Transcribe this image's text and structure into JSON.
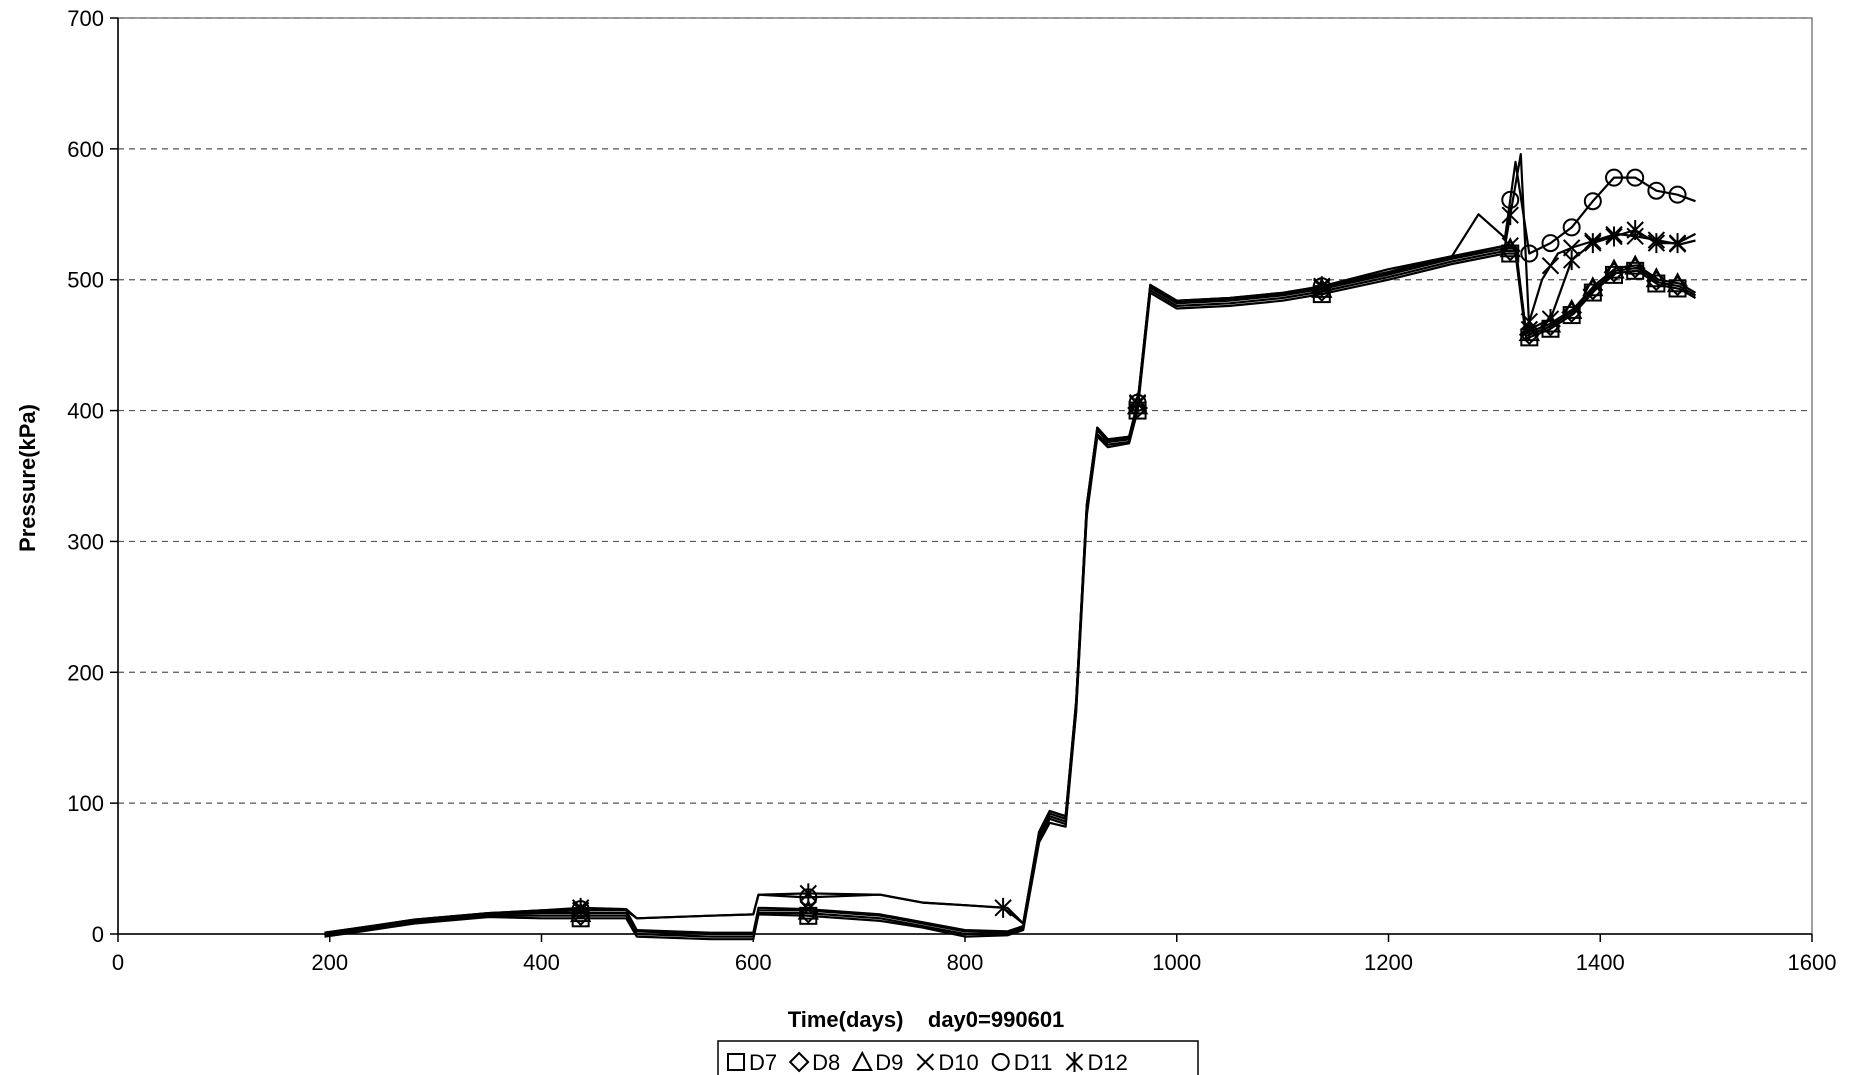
{
  "chart_data": {
    "type": "line",
    "title": "",
    "xlabel": "Time(days)    day0=990601",
    "ylabel": "Pressure(kPa)",
    "xlim": [
      0,
      1600
    ],
    "ylim": [
      0,
      700
    ],
    "x_ticks": [
      "0",
      "200",
      "400",
      "600",
      "800",
      "1000",
      "1200",
      "1400",
      "1600"
    ],
    "y_ticks": [
      "0",
      "100",
      "200",
      "300",
      "400",
      "500",
      "600",
      "700"
    ],
    "grid": "horizontal dashed",
    "legend_position": "bottom",
    "series": [
      {
        "name": "D7",
        "marker": "square",
        "points": [
          [
            195,
            -2
          ],
          [
            230,
            2
          ],
          [
            280,
            8
          ],
          [
            350,
            13
          ],
          [
            400,
            12
          ],
          [
            437,
            12
          ],
          [
            480,
            12
          ],
          [
            490,
            -2
          ],
          [
            560,
            -4
          ],
          [
            600,
            -4
          ],
          [
            605,
            15
          ],
          [
            650,
            14
          ],
          [
            720,
            10
          ],
          [
            760,
            5
          ],
          [
            800,
            -2
          ],
          [
            840,
            -1
          ],
          [
            855,
            3
          ],
          [
            870,
            70
          ],
          [
            880,
            85
          ],
          [
            895,
            82
          ],
          [
            905,
            170
          ],
          [
            915,
            320
          ],
          [
            925,
            380
          ],
          [
            935,
            372
          ],
          [
            955,
            375
          ],
          [
            963,
            400
          ],
          [
            975,
            490
          ],
          [
            1000,
            478
          ],
          [
            1050,
            480
          ],
          [
            1100,
            484
          ],
          [
            1137,
            489
          ],
          [
            1200,
            500
          ],
          [
            1260,
            512
          ],
          [
            1310,
            520
          ],
          [
            1320,
            520
          ],
          [
            1330,
            455
          ],
          [
            1352,
            462
          ],
          [
            1375,
            474
          ],
          [
            1395,
            492
          ],
          [
            1415,
            505
          ],
          [
            1435,
            507
          ],
          [
            1455,
            496
          ],
          [
            1475,
            493
          ],
          [
            1490,
            486
          ]
        ],
        "markers_x": [
          437,
          652,
          963,
          1137,
          1315,
          1333,
          1353,
          1373,
          1393,
          1413,
          1433,
          1453,
          1473
        ]
      },
      {
        "name": "D8",
        "marker": "diamond",
        "points": [
          [
            195,
            -1
          ],
          [
            230,
            3
          ],
          [
            280,
            9
          ],
          [
            350,
            14
          ],
          [
            400,
            14
          ],
          [
            437,
            14
          ],
          [
            480,
            14
          ],
          [
            490,
            0
          ],
          [
            560,
            -2
          ],
          [
            600,
            -2
          ],
          [
            605,
            16
          ],
          [
            650,
            16
          ],
          [
            720,
            12
          ],
          [
            760,
            6
          ],
          [
            800,
            0
          ],
          [
            840,
            0
          ],
          [
            855,
            4
          ],
          [
            870,
            72
          ],
          [
            880,
            88
          ],
          [
            895,
            84
          ],
          [
            905,
            172
          ],
          [
            915,
            322
          ],
          [
            925,
            382
          ],
          [
            935,
            374
          ],
          [
            955,
            376
          ],
          [
            963,
            402
          ],
          [
            975,
            492
          ],
          [
            1000,
            480
          ],
          [
            1050,
            482
          ],
          [
            1100,
            486
          ],
          [
            1137,
            491
          ],
          [
            1200,
            502
          ],
          [
            1260,
            514
          ],
          [
            1310,
            522
          ],
          [
            1320,
            522
          ],
          [
            1330,
            457
          ],
          [
            1352,
            464
          ],
          [
            1375,
            476
          ],
          [
            1395,
            494
          ],
          [
            1415,
            507
          ],
          [
            1435,
            509
          ],
          [
            1455,
            498
          ],
          [
            1475,
            495
          ],
          [
            1490,
            488
          ]
        ],
        "markers_x": [
          437,
          652,
          963,
          1137,
          1315,
          1333,
          1353,
          1373,
          1393,
          1413,
          1433,
          1453,
          1473
        ]
      },
      {
        "name": "D9",
        "marker": "triangle",
        "points": [
          [
            195,
            0
          ],
          [
            230,
            4
          ],
          [
            280,
            10
          ],
          [
            350,
            15
          ],
          [
            400,
            16
          ],
          [
            437,
            16
          ],
          [
            480,
            16
          ],
          [
            490,
            2
          ],
          [
            560,
            0
          ],
          [
            600,
            0
          ],
          [
            605,
            18
          ],
          [
            650,
            18
          ],
          [
            720,
            14
          ],
          [
            760,
            8
          ],
          [
            800,
            2
          ],
          [
            840,
            1
          ],
          [
            855,
            5
          ],
          [
            870,
            74
          ],
          [
            880,
            90
          ],
          [
            895,
            86
          ],
          [
            905,
            175
          ],
          [
            915,
            325
          ],
          [
            925,
            385
          ],
          [
            935,
            376
          ],
          [
            955,
            378
          ],
          [
            963,
            404
          ],
          [
            975,
            494
          ],
          [
            1000,
            482
          ],
          [
            1050,
            484
          ],
          [
            1100,
            488
          ],
          [
            1137,
            493
          ],
          [
            1200,
            504
          ],
          [
            1260,
            516
          ],
          [
            1310,
            524
          ],
          [
            1320,
            524
          ],
          [
            1330,
            459
          ],
          [
            1352,
            466
          ],
          [
            1375,
            478
          ],
          [
            1395,
            496
          ],
          [
            1415,
            509
          ],
          [
            1435,
            511
          ],
          [
            1455,
            500
          ],
          [
            1475,
            497
          ],
          [
            1490,
            490
          ]
        ],
        "markers_x": [
          437,
          652,
          963,
          1137,
          1315,
          1333,
          1353,
          1373,
          1393,
          1413,
          1433,
          1453,
          1473
        ]
      },
      {
        "name": "D10",
        "marker": "x",
        "points": [
          [
            195,
            0
          ],
          [
            230,
            4
          ],
          [
            280,
            10
          ],
          [
            350,
            16
          ],
          [
            400,
            17
          ],
          [
            437,
            18
          ],
          [
            480,
            18
          ],
          [
            490,
            3
          ],
          [
            560,
            1
          ],
          [
            600,
            1
          ],
          [
            605,
            20
          ],
          [
            650,
            19
          ],
          [
            720,
            15
          ],
          [
            760,
            9
          ],
          [
            800,
            3
          ],
          [
            840,
            2
          ],
          [
            855,
            6
          ],
          [
            870,
            76
          ],
          [
            880,
            92
          ],
          [
            895,
            88
          ],
          [
            905,
            177
          ],
          [
            915,
            327
          ],
          [
            925,
            386
          ],
          [
            935,
            377
          ],
          [
            955,
            379
          ],
          [
            963,
            405
          ],
          [
            975,
            495
          ],
          [
            1000,
            483
          ],
          [
            1050,
            485
          ],
          [
            1100,
            489
          ],
          [
            1137,
            494
          ],
          [
            1200,
            505
          ],
          [
            1260,
            517
          ],
          [
            1310,
            526
          ],
          [
            1320,
            526
          ],
          [
            1330,
            460
          ],
          [
            1345,
            500
          ],
          [
            1360,
            520
          ],
          [
            1375,
            525
          ],
          [
            1395,
            530
          ],
          [
            1415,
            535
          ],
          [
            1435,
            533
          ],
          [
            1455,
            530
          ],
          [
            1475,
            527
          ],
          [
            1490,
            530
          ]
        ],
        "markers_x": [
          437,
          652,
          963,
          1137,
          1315,
          1333,
          1353,
          1373,
          1393,
          1413,
          1433,
          1453,
          1473
        ]
      },
      {
        "name": "D11",
        "marker": "circle",
        "points": [
          [
            195,
            1
          ],
          [
            230,
            5
          ],
          [
            280,
            11
          ],
          [
            350,
            16
          ],
          [
            400,
            18
          ],
          [
            437,
            19
          ],
          [
            480,
            18
          ],
          [
            490,
            12
          ],
          [
            560,
            14
          ],
          [
            600,
            15
          ],
          [
            605,
            30
          ],
          [
            650,
            28
          ],
          [
            720,
            30
          ],
          [
            760,
            24
          ],
          [
            800,
            22
          ],
          [
            840,
            20
          ],
          [
            855,
            8
          ],
          [
            870,
            78
          ],
          [
            880,
            94
          ],
          [
            895,
            90
          ],
          [
            905,
            178
          ],
          [
            915,
            328
          ],
          [
            925,
            387
          ],
          [
            935,
            378
          ],
          [
            955,
            380
          ],
          [
            963,
            406
          ],
          [
            975,
            496
          ],
          [
            1000,
            484
          ],
          [
            1050,
            486
          ],
          [
            1100,
            490
          ],
          [
            1137,
            495
          ],
          [
            1200,
            508
          ],
          [
            1260,
            518
          ],
          [
            1285,
            550
          ],
          [
            1310,
            532
          ],
          [
            1320,
            590
          ],
          [
            1333,
            520
          ],
          [
            1353,
            528
          ],
          [
            1373,
            540
          ],
          [
            1393,
            560
          ],
          [
            1413,
            578
          ],
          [
            1433,
            578
          ],
          [
            1453,
            568
          ],
          [
            1473,
            565
          ],
          [
            1490,
            560
          ]
        ],
        "markers_x": [
          437,
          652,
          963,
          1137,
          1315,
          1333,
          1353,
          1373,
          1393,
          1413,
          1433,
          1453,
          1473
        ]
      },
      {
        "name": "D12",
        "marker": "star",
        "points": [
          [
            195,
            1
          ],
          [
            230,
            5
          ],
          [
            280,
            11
          ],
          [
            350,
            16
          ],
          [
            400,
            18
          ],
          [
            437,
            20
          ],
          [
            480,
            19
          ],
          [
            490,
            12
          ],
          [
            560,
            14
          ],
          [
            600,
            15
          ],
          [
            605,
            30
          ],
          [
            652,
            31
          ],
          [
            720,
            30
          ],
          [
            760,
            24
          ],
          [
            800,
            22
          ],
          [
            836,
            20
          ],
          [
            855,
            8
          ],
          [
            870,
            78
          ],
          [
            880,
            94
          ],
          [
            895,
            90
          ],
          [
            905,
            178
          ],
          [
            915,
            328
          ],
          [
            925,
            387
          ],
          [
            935,
            378
          ],
          [
            955,
            380
          ],
          [
            963,
            406
          ],
          [
            975,
            496
          ],
          [
            1000,
            484
          ],
          [
            1050,
            486
          ],
          [
            1100,
            490
          ],
          [
            1137,
            495
          ],
          [
            1200,
            506
          ],
          [
            1260,
            518
          ],
          [
            1310,
            526
          ],
          [
            1325,
            596
          ],
          [
            1333,
            462
          ],
          [
            1353,
            470
          ],
          [
            1373,
            515
          ],
          [
            1393,
            528
          ],
          [
            1413,
            533
          ],
          [
            1433,
            538
          ],
          [
            1453,
            528
          ],
          [
            1473,
            528
          ],
          [
            1490,
            535
          ]
        ],
        "markers_x": [
          437,
          652,
          836,
          963,
          1137,
          1315,
          1333,
          1353,
          1373,
          1393,
          1413,
          1433,
          1453,
          1473
        ]
      }
    ]
  }
}
